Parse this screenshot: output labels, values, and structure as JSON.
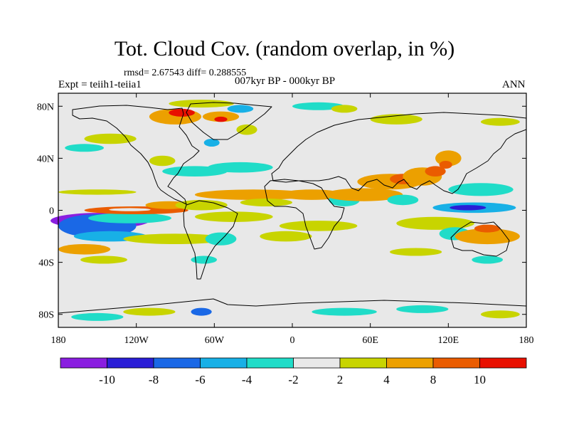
{
  "chart_data": {
    "type": "heatmap",
    "title": "Tot. Cloud Cov. (random overlap, in %)",
    "stats": "rmsd= 2.67543 diff= 0.288555",
    "experiment": "Expt = teiih1-teiia1",
    "period": "007kyr BP - 000kyr BP",
    "season": "ANN",
    "xlim": [
      -180,
      180
    ],
    "ylim": [
      -90,
      90
    ],
    "x_ticks": [
      {
        "value": -180,
        "label": "180"
      },
      {
        "value": -120,
        "label": "120W"
      },
      {
        "value": -60,
        "label": "60W"
      },
      {
        "value": 0,
        "label": "0"
      },
      {
        "value": 60,
        "label": "60E"
      },
      {
        "value": 120,
        "label": "120E"
      },
      {
        "value": 180,
        "label": "180"
      }
    ],
    "y_ticks": [
      {
        "value": 80,
        "label": "80N"
      },
      {
        "value": 40,
        "label": "40N"
      },
      {
        "value": 0,
        "label": "0"
      },
      {
        "value": -40,
        "label": "40S"
      },
      {
        "value": -80,
        "label": "80S"
      }
    ],
    "colorbar": {
      "levels": [
        -10,
        -8,
        -6,
        -4,
        -2,
        2,
        4,
        8,
        10
      ],
      "labels": [
        "-10",
        "-8",
        "-6",
        "-4",
        "-2",
        "2",
        "4",
        "8",
        "10"
      ],
      "colors": [
        "#8a1ee0",
        "#2a1ed6",
        "#1a68e6",
        "#18b0e6",
        "#20dcc8",
        "#e8e8e8",
        "#c8d400",
        "#eca000",
        "#ea5c00",
        "#e81000"
      ]
    },
    "background_color": "#e8e8e8",
    "anomalies": [
      {
        "lon": -148,
        "lat": -8,
        "rlon": 38,
        "rlat": 6,
        "value": -11
      },
      {
        "lon": -150,
        "lat": -12,
        "rlon": 30,
        "rlat": 9,
        "value": -7
      },
      {
        "lon": -140,
        "lat": -20,
        "rlon": 28,
        "rlat": 4,
        "value": -5
      },
      {
        "lon": -125,
        "lat": -6,
        "rlon": 32,
        "rlat": 4,
        "value": -3
      },
      {
        "lon": -120,
        "lat": 0,
        "rlon": 40,
        "rlat": 3,
        "value": 9
      },
      {
        "lon": -125,
        "lat": 0.5,
        "rlon": 16,
        "rlat": 1.2,
        "value": -1
      },
      {
        "lon": -95,
        "lat": 4,
        "rlon": 18,
        "rlat": 3,
        "value": 5
      },
      {
        "lon": -150,
        "lat": 14,
        "rlon": 30,
        "rlat": 2,
        "value": 3
      },
      {
        "lon": -70,
        "lat": 4,
        "rlon": 20,
        "rlat": 4,
        "value": 3
      },
      {
        "lon": -45,
        "lat": -5,
        "rlon": 30,
        "rlat": 4,
        "value": 3
      },
      {
        "lon": -30,
        "lat": 12,
        "rlon": 45,
        "rlat": 4,
        "value": 5
      },
      {
        "lon": -20,
        "lat": 6,
        "rlon": 20,
        "rlat": 3,
        "value": 3
      },
      {
        "lon": -75,
        "lat": 30,
        "rlon": 25,
        "rlat": 4,
        "value": -3
      },
      {
        "lon": -40,
        "lat": 33,
        "rlon": 25,
        "rlat": 4,
        "value": -3
      },
      {
        "lon": -100,
        "lat": 38,
        "rlon": 10,
        "rlat": 4,
        "value": 3
      },
      {
        "lon": -90,
        "lat": -22,
        "rlon": 40,
        "rlat": 4,
        "value": 3
      },
      {
        "lon": -55,
        "lat": -22,
        "rlon": 12,
        "rlat": 5,
        "value": -3
      },
      {
        "lon": -5,
        "lat": -20,
        "rlon": 20,
        "rlat": 4,
        "value": 3
      },
      {
        "lon": -160,
        "lat": -30,
        "rlon": 20,
        "rlat": 4,
        "value": 5
      },
      {
        "lon": -145,
        "lat": -38,
        "rlon": 18,
        "rlat": 3,
        "value": 3
      },
      {
        "lon": -68,
        "lat": -38,
        "rlon": 10,
        "rlat": 3,
        "value": -3
      },
      {
        "lon": 20,
        "lat": -12,
        "rlon": 30,
        "rlat": 4,
        "value": 3
      },
      {
        "lon": 15,
        "lat": 12,
        "rlon": 25,
        "rlat": 4,
        "value": 5
      },
      {
        "lon": 40,
        "lat": 8,
        "rlon": 12,
        "rlat": 5,
        "value": -3
      },
      {
        "lon": 55,
        "lat": 12,
        "rlon": 30,
        "rlat": 5,
        "value": 5
      },
      {
        "lon": 75,
        "lat": 22,
        "rlon": 25,
        "rlat": 6,
        "value": 5
      },
      {
        "lon": 85,
        "lat": 24,
        "rlon": 10,
        "rlat": 4,
        "value": 9
      },
      {
        "lon": 85,
        "lat": 8,
        "rlon": 12,
        "rlat": 4,
        "value": -3
      },
      {
        "lon": 100,
        "lat": 26,
        "rlon": 15,
        "rlat": 7,
        "value": 5
      },
      {
        "lon": 110,
        "lat": 30,
        "rlon": 8,
        "rlat": 4,
        "value": 9
      },
      {
        "lon": 120,
        "lat": 40,
        "rlon": 10,
        "rlat": 6,
        "value": 5
      },
      {
        "lon": 118,
        "lat": 35,
        "rlon": 5,
        "rlat": 3,
        "value": 9
      },
      {
        "lon": 145,
        "lat": 16,
        "rlon": 25,
        "rlat": 5,
        "value": -3
      },
      {
        "lon": 140,
        "lat": 2,
        "rlon": 32,
        "rlat": 4,
        "value": -5
      },
      {
        "lon": 135,
        "lat": 2,
        "rlon": 14,
        "rlat": 2,
        "value": -9
      },
      {
        "lon": 110,
        "lat": -10,
        "rlon": 30,
        "rlat": 5,
        "value": 3
      },
      {
        "lon": 125,
        "lat": -18,
        "rlon": 12,
        "rlat": 5,
        "value": -3
      },
      {
        "lon": 150,
        "lat": -20,
        "rlon": 25,
        "rlat": 6,
        "value": 5
      },
      {
        "lon": 150,
        "lat": -14,
        "rlon": 10,
        "rlat": 3,
        "value": 9
      },
      {
        "lon": 95,
        "lat": -32,
        "rlon": 20,
        "rlat": 3,
        "value": 3
      },
      {
        "lon": 150,
        "lat": -38,
        "rlon": 12,
        "rlat": 3,
        "value": -3
      },
      {
        "lon": -90,
        "lat": 72,
        "rlon": 20,
        "rlat": 6,
        "value": 5
      },
      {
        "lon": -85,
        "lat": 75,
        "rlon": 10,
        "rlat": 3,
        "value": 10
      },
      {
        "lon": -55,
        "lat": 72,
        "rlon": 14,
        "rlat": 4,
        "value": 5
      },
      {
        "lon": -55,
        "lat": 70,
        "rlon": 5,
        "rlat": 2,
        "value": 10
      },
      {
        "lon": -40,
        "lat": 78,
        "rlon": 10,
        "rlat": 3,
        "value": -5
      },
      {
        "lon": -70,
        "lat": 82,
        "rlon": 25,
        "rlat": 3,
        "value": 3
      },
      {
        "lon": -62,
        "lat": 52,
        "rlon": 6,
        "rlat": 3,
        "value": -5
      },
      {
        "lon": -35,
        "lat": 62,
        "rlon": 8,
        "rlat": 4,
        "value": 3
      },
      {
        "lon": 20,
        "lat": 80,
        "rlon": 20,
        "rlat": 3,
        "value": -3
      },
      {
        "lon": 40,
        "lat": 78,
        "rlon": 10,
        "rlat": 3,
        "value": 3
      },
      {
        "lon": 80,
        "lat": 70,
        "rlon": 20,
        "rlat": 4,
        "value": 3
      },
      {
        "lon": 160,
        "lat": 68,
        "rlon": 15,
        "rlat": 3,
        "value": 3
      },
      {
        "lon": -140,
        "lat": 55,
        "rlon": 20,
        "rlat": 4,
        "value": 3
      },
      {
        "lon": -160,
        "lat": 48,
        "rlon": 15,
        "rlat": 3,
        "value": -3
      },
      {
        "lon": -110,
        "lat": -78,
        "rlon": 20,
        "rlat": 3,
        "value": 3
      },
      {
        "lon": -70,
        "lat": -78,
        "rlon": 8,
        "rlat": 3,
        "value": -7
      },
      {
        "lon": 40,
        "lat": -78,
        "rlon": 25,
        "rlat": 3,
        "value": -3
      },
      {
        "lon": 100,
        "lat": -76,
        "rlon": 20,
        "rlat": 3,
        "value": -3
      },
      {
        "lon": 160,
        "lat": -80,
        "rlon": 15,
        "rlat": 3,
        "value": 3
      },
      {
        "lon": -150,
        "lat": -82,
        "rlon": 20,
        "rlat": 3,
        "value": -3
      }
    ]
  }
}
